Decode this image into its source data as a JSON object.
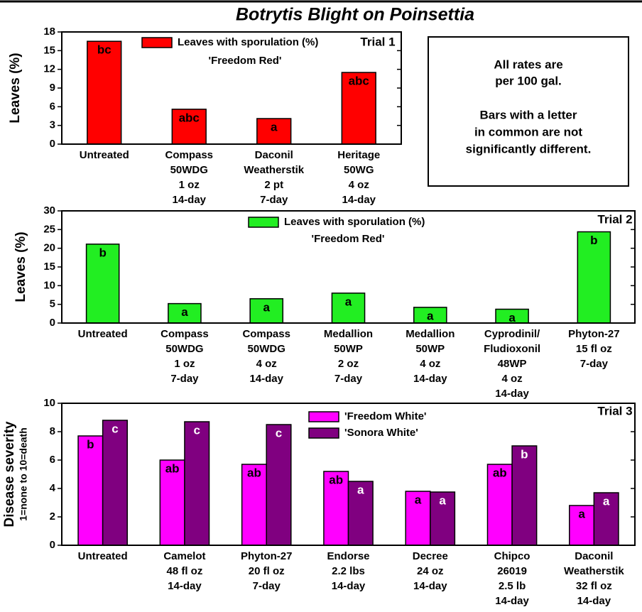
{
  "title": "Botrytis Blight on Poinsettia",
  "note": [
    [
      "All rates are",
      "per 100 gal."
    ],
    [
      "Bars with a letter",
      "in common are not",
      "significantly different."
    ]
  ],
  "chart_data": [
    {
      "type": "bar",
      "annotation": "Trial 1",
      "ylabel": [
        "Leaves (%)"
      ],
      "categories": [
        [
          "Untreated"
        ],
        [
          "Compass",
          "50WDG",
          "1 oz",
          "14-day"
        ],
        [
          "Daconil",
          "Weatherstik",
          "2 pt",
          "7-day"
        ],
        [
          "Heritage",
          "50WG",
          "4 oz",
          "14-day"
        ]
      ],
      "series": [
        {
          "name": "Leaves with sporulation (%)",
          "subtitle": "'Freedom Red'",
          "color": "#ff0000",
          "label_color": "#000000",
          "values": [
            16.5,
            5.6,
            4.1,
            11.5
          ],
          "letters": [
            "bc",
            "abc",
            "a",
            "abc"
          ]
        }
      ],
      "ylim": [
        0,
        18
      ],
      "yticks": [
        0,
        3,
        6,
        9,
        12,
        15,
        18
      ]
    },
    {
      "type": "bar",
      "annotation": "Trial 2",
      "ylabel": [
        "Leaves (%)"
      ],
      "categories": [
        [
          "Untreated"
        ],
        [
          "Compass",
          "50WDG",
          "1 oz",
          "7-day"
        ],
        [
          "Compass",
          "50WDG",
          "4 oz",
          "14-day"
        ],
        [
          "Medallion",
          "50WP",
          "2 oz",
          "7-day"
        ],
        [
          "Medallion",
          "50WP",
          "4 oz",
          "14-day"
        ],
        [
          "Cyprodinil/",
          "Fludioxonil",
          "48WP",
          "4 oz",
          "14-day"
        ],
        [
          "Phyton-27",
          "15 fl oz",
          "7-day"
        ]
      ],
      "series": [
        {
          "name": "Leaves with sporulation (%)",
          "subtitle": "'Freedom Red'",
          "color": "#22ee22",
          "label_color": "#000000",
          "values": [
            21.1,
            5.2,
            6.5,
            8.0,
            4.2,
            3.7,
            24.4
          ],
          "letters": [
            "b",
            "a",
            "a",
            "a",
            "a",
            "a",
            "b"
          ]
        }
      ],
      "ylim": [
        0,
        30
      ],
      "yticks": [
        0,
        5,
        10,
        15,
        20,
        25,
        30
      ]
    },
    {
      "type": "bar",
      "annotation": "Trial 3",
      "ylabel": [
        "Disease severity",
        "1=none to 10=death"
      ],
      "categories": [
        [
          "Untreated"
        ],
        [
          "Camelot",
          "48 fl oz",
          "14-day"
        ],
        [
          "Phyton-27",
          "20 fl oz",
          "7-day"
        ],
        [
          "Endorse",
          "2.2 lbs",
          "14-day"
        ],
        [
          "Decree",
          "24 oz",
          "14-day"
        ],
        [
          "Chipco",
          "26019",
          "2.5 lb",
          "14-day"
        ],
        [
          "Daconil",
          "Weatherstik",
          "32 fl oz",
          "14-day"
        ]
      ],
      "series": [
        {
          "name": "'Freedom White'",
          "color": "#ff00ff",
          "label_color": "#000000",
          "values": [
            7.7,
            6.0,
            5.7,
            5.2,
            3.8,
            5.7,
            2.8
          ],
          "letters": [
            "b",
            "ab",
            "ab",
            "ab",
            "a",
            "ab",
            "a"
          ]
        },
        {
          "name": "'Sonora White'",
          "color": "#800080",
          "label_color": "#ffffff",
          "values": [
            8.8,
            8.7,
            8.5,
            4.5,
            3.75,
            7.0,
            3.7
          ],
          "letters": [
            "c",
            "c",
            "c",
            "a",
            "a",
            "b",
            "a"
          ]
        }
      ],
      "ylim": [
        0,
        10
      ],
      "yticks": [
        0,
        2,
        4,
        6,
        8,
        10
      ]
    }
  ]
}
